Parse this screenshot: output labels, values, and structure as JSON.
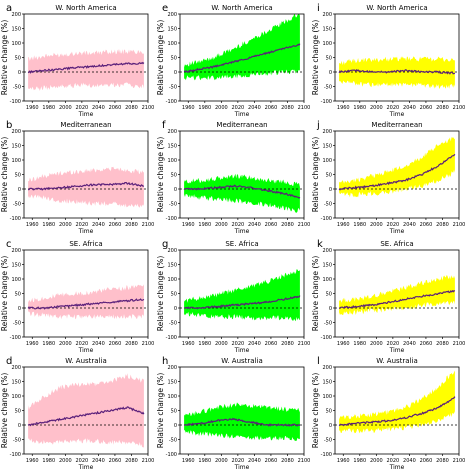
{
  "figure": {
    "y_axis_label": "Relative change (%)",
    "x_axis_label": "Time"
  },
  "panels_meta": {
    "x_ticks": [
      1960,
      1980,
      2000,
      2020,
      2040,
      2060,
      2080,
      2100
    ],
    "y_ticks": [
      -100,
      -50,
      0,
      50,
      100,
      150,
      200
    ],
    "xlim": [
      1950,
      2100
    ],
    "ylim": [
      -100,
      200
    ],
    "column_colors": [
      "#FFC0CB",
      "#00FF00",
      "#FFFF00"
    ],
    "median_color": "#5a1f7a",
    "zero_line_color": "#000000"
  },
  "chart_data": [
    {
      "type": "area",
      "panel_letter": "a",
      "title": "W. North America",
      "column": 0,
      "row": 0,
      "x": [
        1955,
        1975,
        1995,
        2015,
        2035,
        2055,
        2075,
        2095
      ],
      "median": [
        0,
        5,
        10,
        15,
        20,
        25,
        28,
        30
      ],
      "upper": [
        45,
        55,
        60,
        65,
        65,
        70,
        70,
        70
      ],
      "lower": [
        -60,
        -55,
        -50,
        -45,
        -45,
        -45,
        -45,
        -50
      ]
    },
    {
      "type": "area",
      "panel_letter": "e",
      "title": "W. North America",
      "column": 1,
      "row": 0,
      "x": [
        1955,
        1975,
        1995,
        2015,
        2035,
        2055,
        2075,
        2095
      ],
      "median": [
        0,
        10,
        20,
        35,
        50,
        65,
        80,
        95
      ],
      "upper": [
        25,
        35,
        55,
        80,
        110,
        140,
        170,
        200
      ],
      "lower": [
        -20,
        -20,
        -20,
        -15,
        -10,
        -5,
        0,
        0
      ]
    },
    {
      "type": "area",
      "panel_letter": "i",
      "title": "W. North America",
      "column": 2,
      "row": 0,
      "x": [
        1955,
        1975,
        1995,
        2015,
        2035,
        2055,
        2075,
        2095
      ],
      "median": [
        0,
        5,
        0,
        0,
        5,
        0,
        0,
        -5
      ],
      "upper": [
        30,
        40,
        40,
        45,
        45,
        45,
        45,
        40
      ],
      "lower": [
        -30,
        -40,
        -45,
        -45,
        -45,
        -45,
        -50,
        -50
      ]
    },
    {
      "type": "area",
      "panel_letter": "b",
      "title": "Mediterranean",
      "column": 0,
      "row": 1,
      "x": [
        1955,
        1975,
        1995,
        2015,
        2035,
        2055,
        2075,
        2095
      ],
      "median": [
        0,
        0,
        5,
        10,
        15,
        15,
        20,
        10
      ],
      "upper": [
        30,
        45,
        55,
        60,
        65,
        70,
        65,
        55
      ],
      "lower": [
        -25,
        -30,
        -40,
        -45,
        -50,
        -50,
        -55,
        -60
      ]
    },
    {
      "type": "area",
      "panel_letter": "f",
      "title": "Mediterranean",
      "column": 1,
      "row": 1,
      "x": [
        1955,
        1975,
        1995,
        2015,
        2035,
        2055,
        2075,
        2095
      ],
      "median": [
        0,
        0,
        5,
        10,
        5,
        -5,
        -15,
        -30
      ],
      "upper": [
        25,
        30,
        35,
        45,
        40,
        30,
        25,
        15
      ],
      "lower": [
        -20,
        -30,
        -35,
        -40,
        -45,
        -55,
        -65,
        -75
      ]
    },
    {
      "type": "area",
      "panel_letter": "j",
      "title": "Mediterranean",
      "column": 2,
      "row": 1,
      "x": [
        1955,
        1975,
        1995,
        2015,
        2035,
        2055,
        2075,
        2095
      ],
      "median": [
        0,
        5,
        10,
        20,
        30,
        50,
        80,
        120
      ],
      "upper": [
        20,
        30,
        45,
        60,
        80,
        110,
        150,
        180
      ],
      "lower": [
        -20,
        -20,
        -15,
        -10,
        0,
        10,
        30,
        60
      ]
    },
    {
      "type": "area",
      "panel_letter": "c",
      "title": "SE. Africa",
      "column": 0,
      "row": 2,
      "x": [
        1955,
        1975,
        1995,
        2015,
        2035,
        2055,
        2075,
        2095
      ],
      "median": [
        0,
        0,
        5,
        10,
        15,
        20,
        25,
        30
      ],
      "upper": [
        25,
        35,
        45,
        50,
        55,
        65,
        70,
        75
      ],
      "lower": [
        -20,
        -25,
        -30,
        -30,
        -30,
        -30,
        -30,
        -30
      ]
    },
    {
      "type": "area",
      "panel_letter": "g",
      "title": "SE. Africa",
      "column": 1,
      "row": 2,
      "x": [
        1955,
        1975,
        1995,
        2015,
        2035,
        2055,
        2075,
        2095
      ],
      "median": [
        0,
        0,
        5,
        10,
        15,
        20,
        30,
        40
      ],
      "upper": [
        25,
        35,
        45,
        60,
        75,
        90,
        110,
        130
      ],
      "lower": [
        -20,
        -25,
        -30,
        -30,
        -35,
        -35,
        -35,
        -40
      ]
    },
    {
      "type": "area",
      "panel_letter": "k",
      "title": "SE. Africa",
      "column": 2,
      "row": 2,
      "x": [
        1955,
        1975,
        1995,
        2015,
        2035,
        2055,
        2075,
        2095
      ],
      "median": [
        0,
        5,
        10,
        20,
        30,
        40,
        50,
        60
      ],
      "upper": [
        25,
        30,
        40,
        55,
        70,
        85,
        100,
        110
      ],
      "lower": [
        -20,
        -15,
        -10,
        -5,
        0,
        10,
        15,
        20
      ]
    },
    {
      "type": "area",
      "panel_letter": "d",
      "title": "W. Australia",
      "column": 0,
      "row": 3,
      "x": [
        1955,
        1975,
        1995,
        2015,
        2035,
        2055,
        2075,
        2095
      ],
      "median": [
        0,
        10,
        20,
        30,
        40,
        50,
        60,
        40
      ],
      "upper": [
        60,
        100,
        130,
        140,
        140,
        150,
        170,
        150
      ],
      "lower": [
        -50,
        -60,
        -60,
        -55,
        -55,
        -60,
        -60,
        -70
      ]
    },
    {
      "type": "area",
      "panel_letter": "h",
      "title": "W. Australia",
      "column": 1,
      "row": 3,
      "x": [
        1955,
        1975,
        1995,
        2015,
        2035,
        2055,
        2075,
        2095
      ],
      "median": [
        0,
        5,
        15,
        20,
        10,
        0,
        0,
        0
      ],
      "upper": [
        30,
        45,
        60,
        70,
        65,
        60,
        55,
        50
      ],
      "lower": [
        -25,
        -30,
        -35,
        -40,
        -45,
        -45,
        -45,
        -50
      ]
    },
    {
      "type": "area",
      "panel_letter": "l",
      "title": "W. Australia",
      "column": 2,
      "row": 3,
      "x": [
        1955,
        1975,
        1995,
        2015,
        2035,
        2055,
        2075,
        2095
      ],
      "median": [
        0,
        5,
        10,
        15,
        25,
        40,
        60,
        95
      ],
      "upper": [
        25,
        30,
        35,
        45,
        60,
        90,
        130,
        190
      ],
      "lower": [
        -20,
        -20,
        -20,
        -15,
        -10,
        0,
        15,
        40
      ]
    }
  ]
}
